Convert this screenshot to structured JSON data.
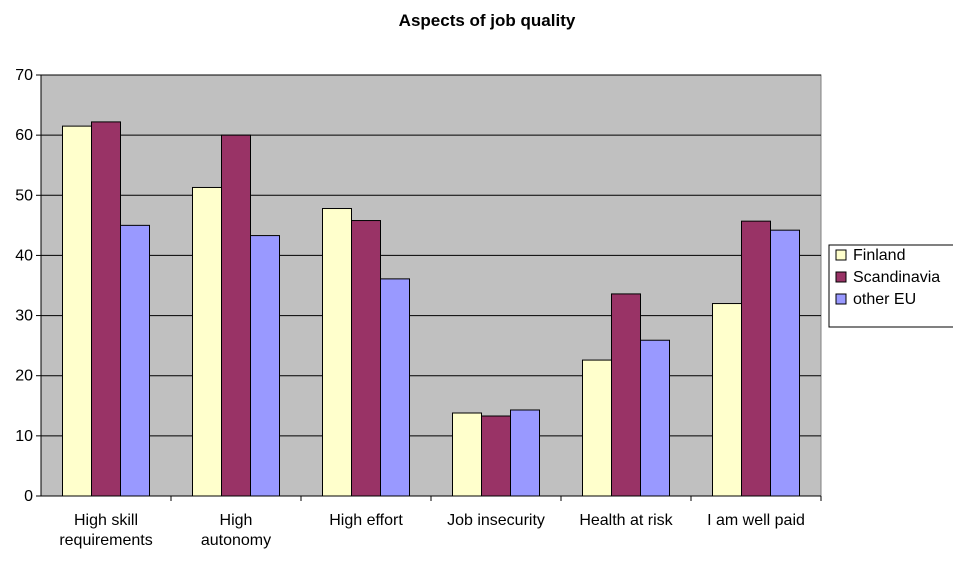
{
  "chart_data": {
    "type": "bar",
    "title": "Aspects of job quality",
    "xlabel": "",
    "ylabel": "",
    "ylim": [
      0,
      70
    ],
    "yticks": [
      0,
      10,
      20,
      30,
      40,
      50,
      60,
      70
    ],
    "grid": true,
    "legend_position": "right",
    "plot_background": "#c0c0c0",
    "categories": [
      [
        "High skill",
        "requirements"
      ],
      [
        "High",
        "autonomy"
      ],
      [
        "High effort"
      ],
      [
        "Job insecurity"
      ],
      [
        "Health at risk"
      ],
      [
        "I am well paid"
      ]
    ],
    "series": [
      {
        "name": "Finland",
        "color": "#ffffcc",
        "values": [
          61.5,
          51.3,
          47.8,
          13.8,
          22.6,
          32.0
        ]
      },
      {
        "name": "Scandinavia",
        "color": "#993366",
        "values": [
          62.2,
          60.0,
          45.8,
          13.3,
          33.6,
          45.7
        ]
      },
      {
        "name": "other EU",
        "color": "#9999ff",
        "values": [
          45.0,
          43.3,
          36.1,
          14.3,
          25.9,
          44.2
        ]
      }
    ]
  }
}
